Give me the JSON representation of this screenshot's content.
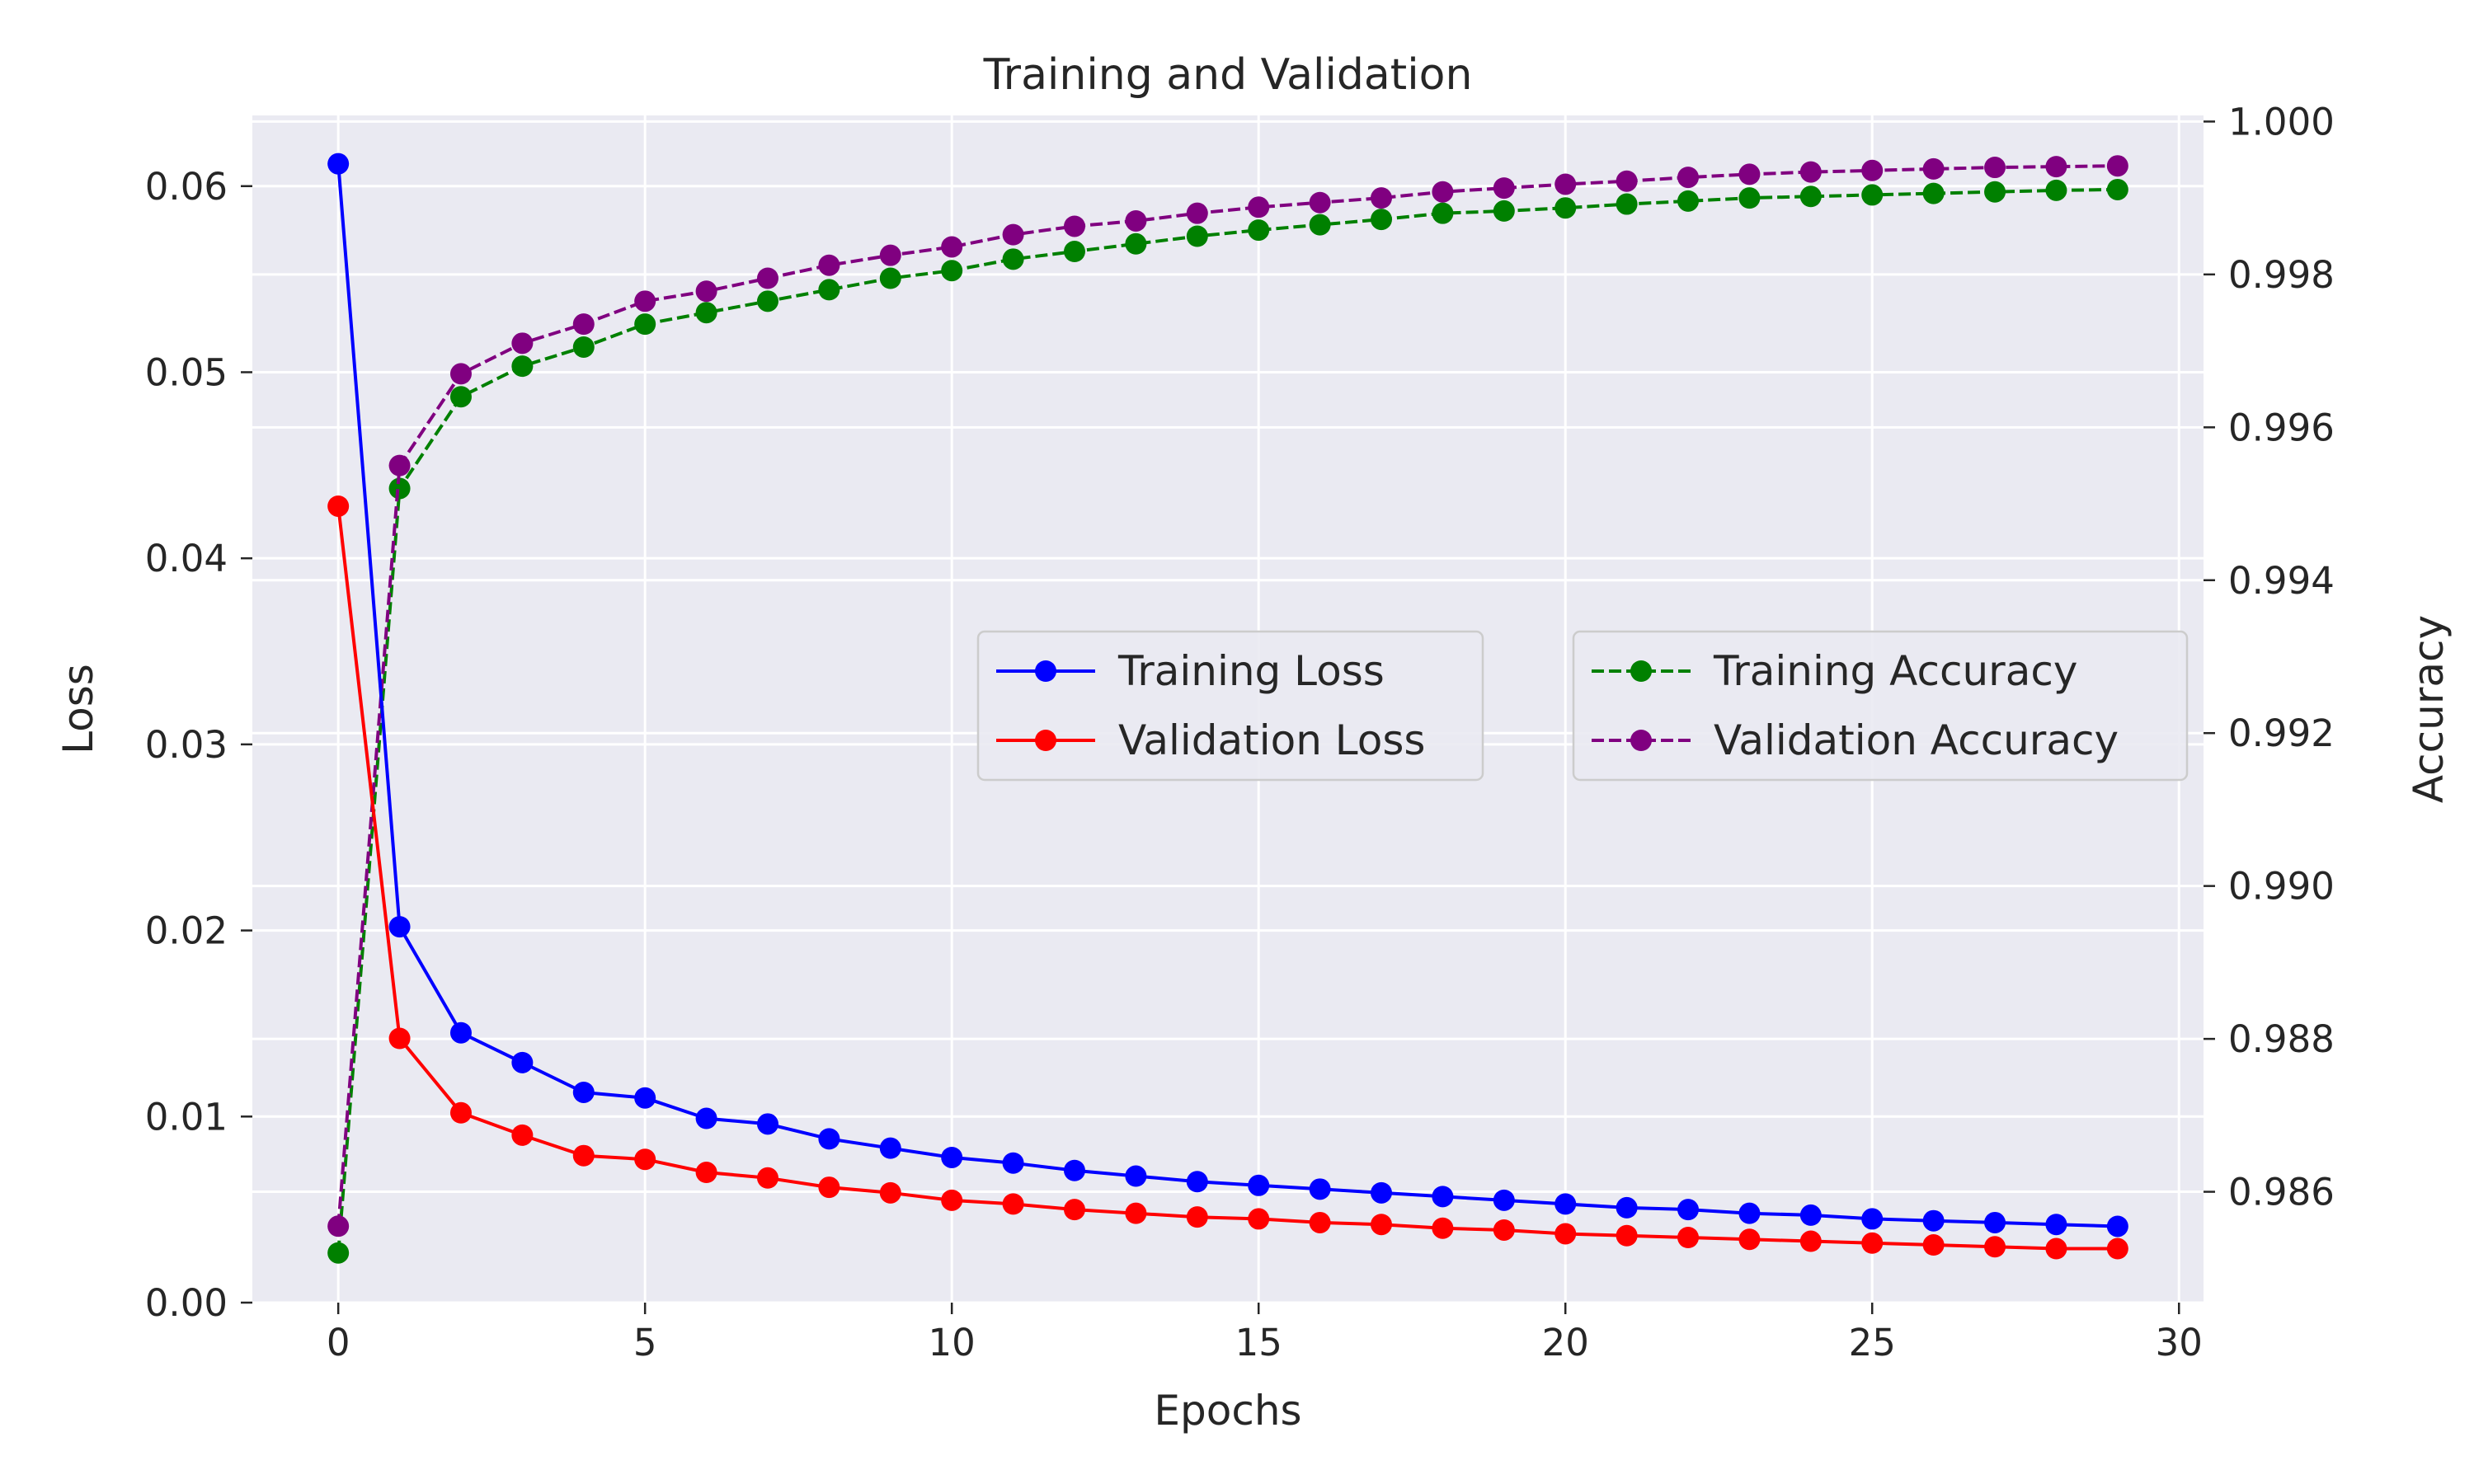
{
  "chart_data": {
    "type": "line",
    "title": "Training and Validation",
    "xlabel": "Epochs",
    "ylabel_left": "Loss",
    "ylabel_right": "Accuracy",
    "xlim": [
      -1.4,
      30.4
    ],
    "ylim_left": [
      0,
      0.0638
    ],
    "ylim_right": [
      0.98455,
      1.00008
    ],
    "x_ticks": [
      0,
      5,
      10,
      15,
      20,
      25,
      30
    ],
    "x_tick_labels": [
      "0",
      "5",
      "10",
      "15",
      "20",
      "25",
      "30"
    ],
    "y_left_ticks": [
      0,
      0.01,
      0.02,
      0.03,
      0.04,
      0.05,
      0.06
    ],
    "y_left_tick_labels": [
      "0.00",
      "0.01",
      "0.02",
      "0.03",
      "0.04",
      "0.05",
      "0.06"
    ],
    "y_right_ticks": [
      0.986,
      0.988,
      0.99,
      0.992,
      0.994,
      0.996,
      0.998,
      1.0
    ],
    "y_right_tick_labels": [
      "0.986",
      "0.988",
      "0.990",
      "0.992",
      "0.994",
      "0.996",
      "0.998",
      "1.000"
    ],
    "grid": true,
    "legend_left_placement": "center",
    "legend_right_placement": "center-right",
    "x": [
      0,
      1,
      2,
      3,
      4,
      5,
      6,
      7,
      8,
      9,
      10,
      11,
      12,
      13,
      14,
      15,
      16,
      17,
      18,
      19,
      20,
      21,
      22,
      23,
      24,
      25,
      26,
      27,
      28,
      29
    ],
    "series": [
      {
        "name": "Training Loss",
        "axis": "left",
        "color": "#0000ff",
        "dash": "solid",
        "values": [
          0.0612,
          0.0202,
          0.0145,
          0.0129,
          0.0113,
          0.011,
          0.0099,
          0.0096,
          0.0088,
          0.0083,
          0.0078,
          0.0075,
          0.0071,
          0.0068,
          0.0065,
          0.0063,
          0.0061,
          0.0059,
          0.0057,
          0.0055,
          0.0053,
          0.0051,
          0.005,
          0.0048,
          0.0047,
          0.0045,
          0.0044,
          0.0043,
          0.0042,
          0.0041
        ]
      },
      {
        "name": "Validation Loss",
        "axis": "left",
        "color": "#ff0000",
        "dash": "solid",
        "values": [
          0.0428,
          0.0142,
          0.0102,
          0.009,
          0.0079,
          0.0077,
          0.007,
          0.0067,
          0.0062,
          0.0059,
          0.0055,
          0.0053,
          0.005,
          0.0048,
          0.0046,
          0.0045,
          0.0043,
          0.0042,
          0.004,
          0.0039,
          0.0037,
          0.0036,
          0.0035,
          0.0034,
          0.0033,
          0.0032,
          0.0031,
          0.003,
          0.0029,
          0.0029
        ]
      },
      {
        "name": "Training Accuracy",
        "axis": "right",
        "color": "#008000",
        "dash": "dashed",
        "values": [
          0.9852,
          0.9952,
          0.9964,
          0.9968,
          0.99705,
          0.99735,
          0.9975,
          0.99765,
          0.9978,
          0.99795,
          0.99805,
          0.9982,
          0.9983,
          0.9984,
          0.9985,
          0.99858,
          0.99865,
          0.99872,
          0.9988,
          0.99883,
          0.99887,
          0.99892,
          0.99896,
          0.999,
          0.99902,
          0.99904,
          0.99906,
          0.99908,
          0.9991,
          0.99911
        ]
      },
      {
        "name": "Validation Accuracy",
        "axis": "right",
        "color": "#800080",
        "dash": "dashed",
        "values": [
          0.98555,
          0.9955,
          0.9967,
          0.9971,
          0.99735,
          0.99765,
          0.99778,
          0.99795,
          0.99812,
          0.99825,
          0.99836,
          0.99852,
          0.99863,
          0.9987,
          0.9988,
          0.99888,
          0.99894,
          0.999,
          0.99908,
          0.99913,
          0.99918,
          0.99922,
          0.99927,
          0.99931,
          0.99934,
          0.99936,
          0.99938,
          0.9994,
          0.99941,
          0.99942
        ]
      }
    ]
  }
}
